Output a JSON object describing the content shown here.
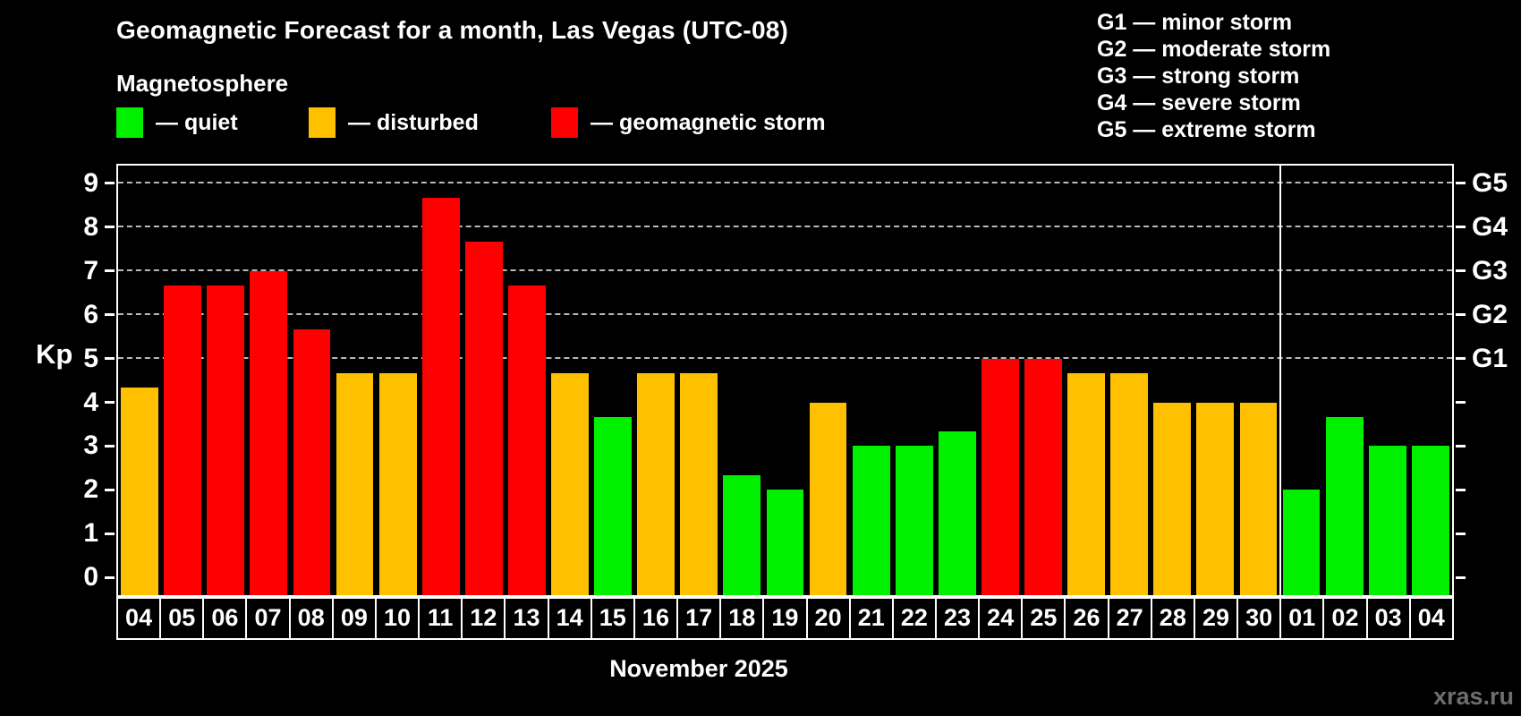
{
  "header": {
    "title": "Geomagnetic Forecast for a month, Las Vegas (UTC-08)",
    "subtitle": "Magnetosphere"
  },
  "status_legend": [
    {
      "key": "quiet",
      "label": "— quiet",
      "color": "#00f000"
    },
    {
      "key": "disturbed",
      "label": "— disturbed",
      "color": "#ffc000"
    },
    {
      "key": "storm",
      "label": "— geomagnetic storm",
      "color": "#ff0000"
    }
  ],
  "g_legend": [
    "G1 — minor storm",
    "G2 — moderate storm",
    "G3 — strong storm",
    "G4 — severe storm",
    "G5 — extreme storm"
  ],
  "colors": {
    "quiet": "#00f000",
    "disturbed": "#ffc000",
    "storm": "#ff0000",
    "background": "#000000",
    "axis": "#ffffff",
    "gridline": "#b9b9b9"
  },
  "chart_data": {
    "type": "bar",
    "title": "Geomagnetic Forecast for a month, Las Vegas (UTC-08)",
    "subtitle": "Magnetosphere",
    "ylabel": "Kp",
    "xlabel": "November 2025",
    "y_domain": [
      -0.4,
      9.4
    ],
    "yticks": [
      0,
      1,
      2,
      3,
      4,
      5,
      6,
      7,
      8,
      9
    ],
    "gridlines_at": [
      5,
      6,
      7,
      8,
      9
    ],
    "grid": "dashed, horizontal, only at Kp 5-9 (G-levels)",
    "g_scale": {
      "5": "G1",
      "6": "G2",
      "7": "G3",
      "8": "G4",
      "9": "G5"
    },
    "categories": [
      "04",
      "05",
      "06",
      "07",
      "08",
      "09",
      "10",
      "11",
      "12",
      "13",
      "14",
      "15",
      "16",
      "17",
      "18",
      "19",
      "20",
      "21",
      "22",
      "23",
      "24",
      "25",
      "26",
      "27",
      "28",
      "29",
      "30",
      "01",
      "02",
      "03",
      "04"
    ],
    "values": [
      4.33,
      6.67,
      6.67,
      7.0,
      5.67,
      4.67,
      4.67,
      8.67,
      7.67,
      6.67,
      4.67,
      3.67,
      4.67,
      4.67,
      2.33,
      2.0,
      4.0,
      3.0,
      3.0,
      3.33,
      5.0,
      5.0,
      4.67,
      4.67,
      4.0,
      4.0,
      4.0,
      2.0,
      3.67,
      3.0,
      3.0
    ],
    "statuses": [
      "disturbed",
      "storm",
      "storm",
      "storm",
      "storm",
      "disturbed",
      "disturbed",
      "storm",
      "storm",
      "storm",
      "disturbed",
      "quiet",
      "disturbed",
      "disturbed",
      "quiet",
      "quiet",
      "disturbed",
      "quiet",
      "quiet",
      "quiet",
      "storm",
      "storm",
      "disturbed",
      "disturbed",
      "disturbed",
      "disturbed",
      "disturbed",
      "quiet",
      "quiet",
      "quiet",
      "quiet"
    ],
    "month_divider_after_index": 26,
    "legend_position": "top"
  },
  "footer": {
    "watermark": "xras.ru"
  }
}
